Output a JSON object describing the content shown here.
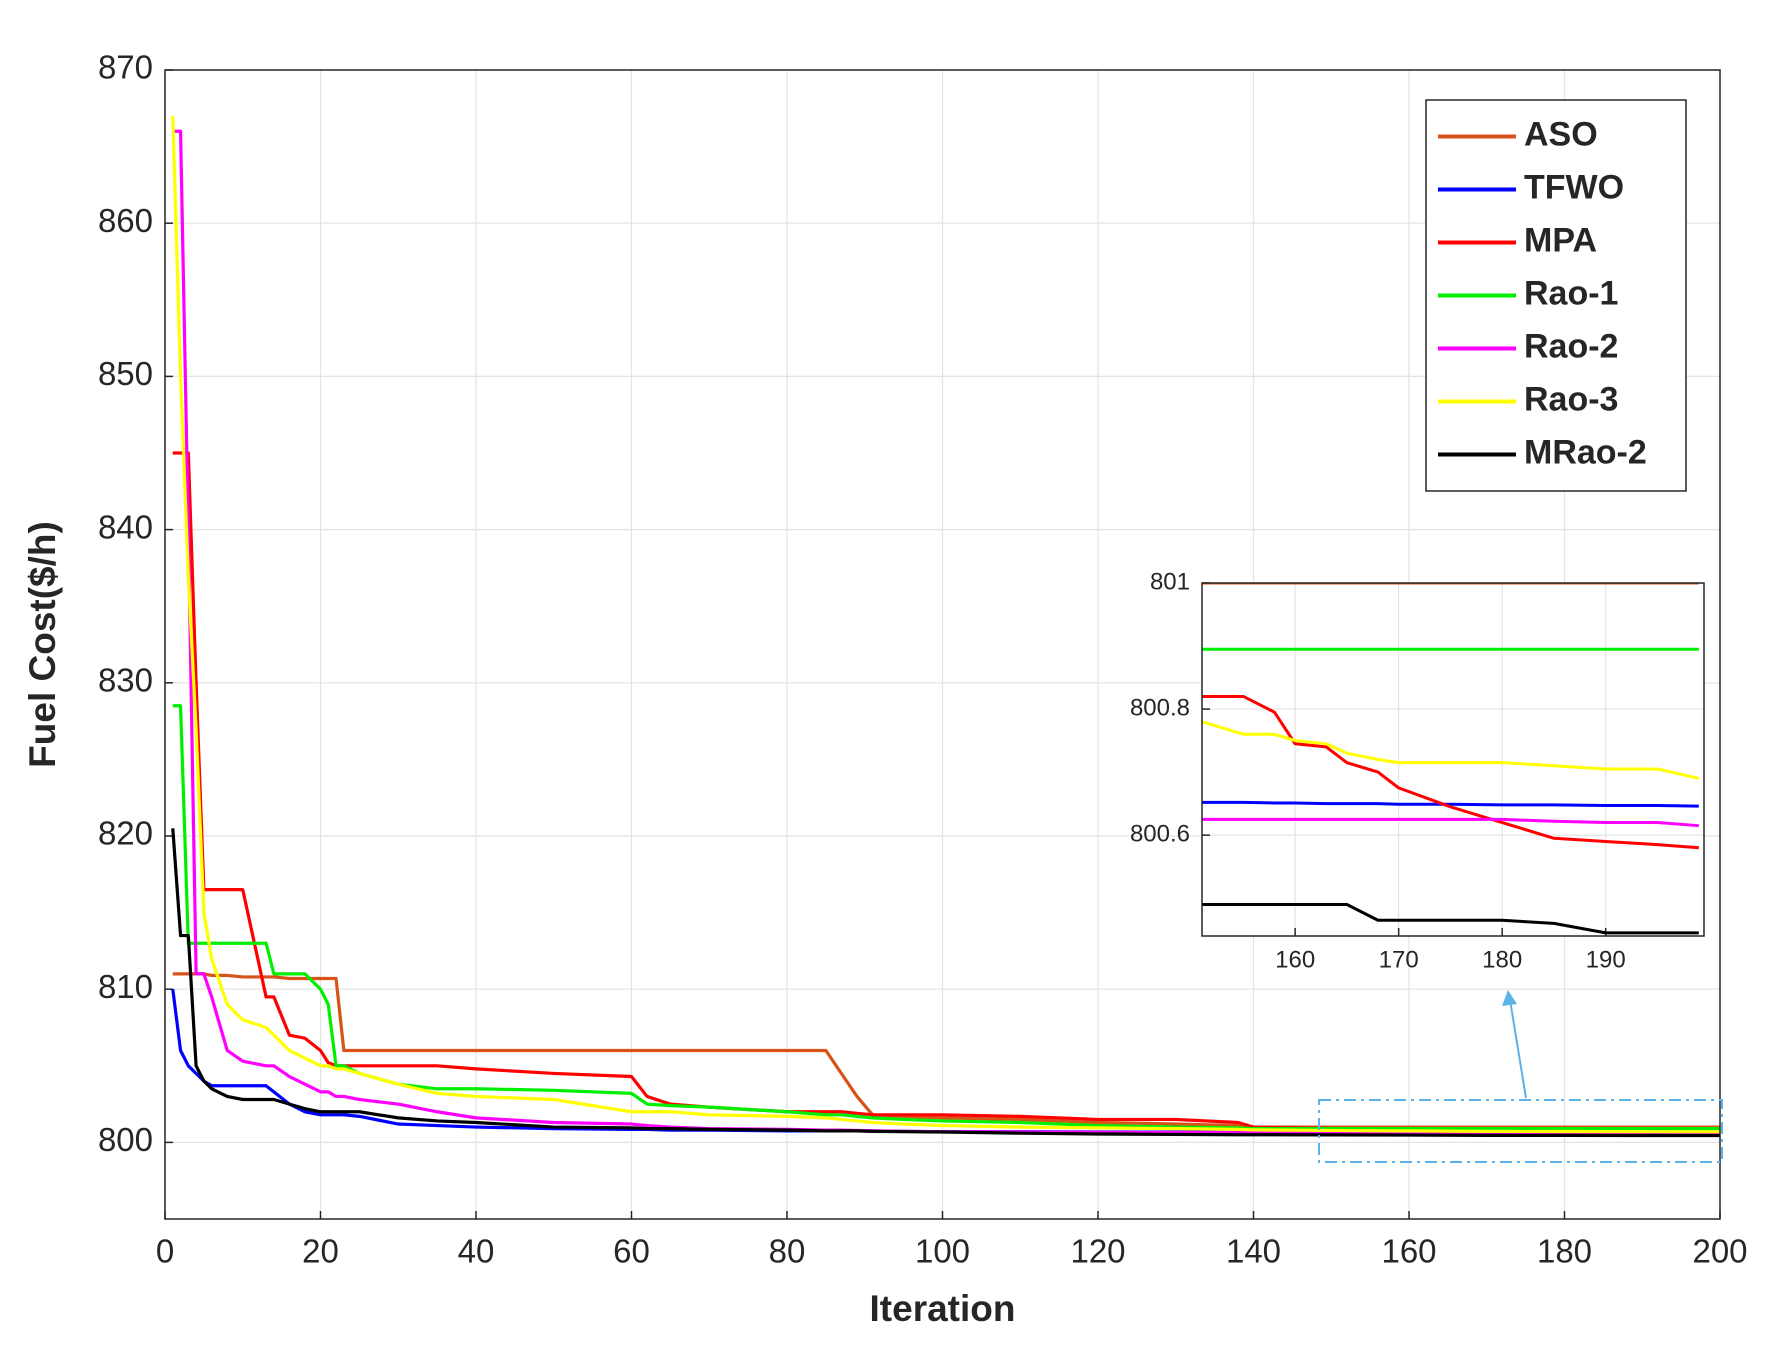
{
  "chart_data": [
    {
      "type": "line",
      "xlabel": "Iteration",
      "ylabel": "Fuel Cost($/h)",
      "xlim": [
        0,
        200
      ],
      "xticks": [
        0,
        20,
        40,
        60,
        80,
        100,
        120,
        140,
        160,
        180,
        200
      ],
      "ylim": [
        795,
        870
      ],
      "yticks": [
        800,
        810,
        820,
        830,
        840,
        850,
        860,
        870
      ],
      "grid": true,
      "legend_position": "upper right",
      "x": [
        1,
        2,
        3,
        4,
        5,
        6,
        8,
        10,
        13,
        14,
        16,
        18,
        20,
        21,
        22,
        23,
        25,
        30,
        35,
        40,
        50,
        60,
        62,
        65,
        70,
        80,
        85,
        87,
        89,
        91,
        95,
        100,
        110,
        120,
        130,
        138,
        140,
        150,
        160,
        170,
        180,
        190,
        200
      ],
      "series": [
        {
          "name": "ASO",
          "color": "#d95319",
          "values": [
            811,
            811,
            811,
            811,
            811,
            810.9,
            810.9,
            810.8,
            810.8,
            810.8,
            810.7,
            810.7,
            810.7,
            810.7,
            810.7,
            806,
            806,
            806,
            806,
            806,
            806,
            806,
            806,
            806,
            806,
            806,
            806,
            804.5,
            803,
            801.8,
            801.7,
            801.6,
            801.5,
            801.3,
            801.2,
            801.1,
            801,
            801,
            801,
            801,
            801,
            801,
            801
          ]
        },
        {
          "name": "TFWO",
          "color": "#0000ff",
          "values": [
            810,
            806,
            805,
            804.5,
            804,
            803.7,
            803.7,
            803.7,
            803.7,
            803.3,
            802.5,
            802,
            801.8,
            801.8,
            801.8,
            801.8,
            801.7,
            801.2,
            801.1,
            801,
            800.9,
            800.85,
            800.85,
            800.8,
            800.8,
            800.75,
            800.75,
            800.75,
            800.75,
            800.75,
            800.72,
            800.7,
            800.7,
            800.68,
            800.67,
            800.66,
            800.66,
            800.65,
            800.65,
            800.65,
            800.65,
            800.65,
            800.65
          ]
        },
        {
          "name": "MPA",
          "color": "#ff0000",
          "values": [
            845,
            845,
            845,
            830,
            816.5,
            816.5,
            816.5,
            816.5,
            809.5,
            809.5,
            807,
            806.8,
            806,
            805.2,
            805,
            805,
            805,
            805,
            805,
            804.8,
            804.5,
            804.3,
            803,
            802.5,
            802.3,
            802,
            802,
            802,
            801.9,
            801.8,
            801.8,
            801.8,
            801.7,
            801.5,
            801.5,
            801.3,
            801,
            800.9,
            800.82,
            800.72,
            800.62,
            800.59,
            800.58
          ]
        },
        {
          "name": "Rao-1",
          "color": "#00ee00",
          "values": [
            828.5,
            828.5,
            813,
            813,
            813,
            813,
            813,
            813,
            813,
            811,
            811,
            811,
            810,
            809,
            805,
            805,
            804.5,
            803.8,
            803.5,
            803.5,
            803.4,
            803.2,
            802.5,
            802.4,
            802.3,
            802,
            801.8,
            801.8,
            801.7,
            801.6,
            801.5,
            801.4,
            801.3,
            801.1,
            801,
            800.95,
            800.9,
            800.9,
            800.9,
            800.9,
            800.9,
            800.9,
            800.9
          ]
        },
        {
          "name": "Rao-2",
          "color": "#ff00ff",
          "values": [
            866,
            866,
            840,
            811,
            811,
            809.5,
            806,
            805.3,
            805,
            805,
            804.3,
            803.8,
            803.3,
            803.3,
            803,
            803,
            802.8,
            802.5,
            802,
            801.6,
            801.3,
            801.2,
            801.1,
            801,
            800.9,
            800.85,
            800.8,
            800.8,
            800.78,
            800.75,
            800.72,
            800.7,
            800.68,
            800.66,
            800.64,
            800.63,
            800.63,
            800.63,
            800.62,
            800.62,
            800.62,
            800.62,
            800.62
          ]
        },
        {
          "name": "Rao-3",
          "color": "#ffff00",
          "values": [
            867,
            850,
            837,
            827,
            815,
            812,
            809,
            808,
            807.5,
            807,
            806,
            805.5,
            805,
            805,
            804.8,
            804.8,
            804.5,
            803.8,
            803.2,
            803,
            802.8,
            802,
            802,
            802,
            801.8,
            801.7,
            801.6,
            801.5,
            801.4,
            801.3,
            801.2,
            801.1,
            801,
            800.95,
            800.9,
            800.85,
            800.82,
            800.78,
            800.75,
            800.72,
            800.71,
            800.7,
            800.69
          ]
        },
        {
          "name": "MRao-2",
          "color": "#000000",
          "values": [
            820.5,
            813.5,
            813.5,
            805,
            804,
            803.5,
            803,
            802.8,
            802.8,
            802.8,
            802.5,
            802.2,
            802,
            802,
            802,
            802,
            802,
            801.6,
            801.4,
            801.3,
            801,
            800.95,
            800.9,
            800.9,
            800.85,
            800.8,
            800.75,
            800.75,
            800.75,
            800.72,
            800.7,
            800.68,
            800.6,
            800.55,
            800.52,
            800.5,
            800.5,
            800.49,
            800.48,
            800.46,
            800.46,
            800.45,
            800.45
          ]
        }
      ]
    },
    {
      "type": "line",
      "xlim": [
        151,
        199.5
      ],
      "xticks": [
        160,
        170,
        180,
        190
      ],
      "ylim": [
        800.44,
        801
      ],
      "yticks": [
        800.6,
        800.8,
        801
      ],
      "grid": true,
      "x": [
        151,
        155,
        158,
        160,
        163,
        165,
        168,
        170,
        175,
        180,
        185,
        190,
        195,
        199
      ],
      "series": [
        {
          "color": "#d95319",
          "values": [
            801,
            801,
            801,
            801,
            801,
            801,
            801,
            801,
            801,
            801,
            801,
            801,
            801,
            801
          ]
        },
        {
          "color": "#0000ff",
          "values": [
            800.652,
            800.652,
            800.651,
            800.651,
            800.65,
            800.65,
            800.65,
            800.649,
            800.649,
            800.648,
            800.648,
            800.647,
            800.647,
            800.646
          ]
        },
        {
          "color": "#ff0000",
          "values": [
            800.82,
            800.82,
            800.795,
            800.745,
            800.74,
            800.715,
            800.7,
            800.675,
            800.645,
            800.62,
            800.595,
            800.59,
            800.585,
            800.58
          ]
        },
        {
          "color": "#00ee00",
          "values": [
            800.895,
            800.895,
            800.895,
            800.895,
            800.895,
            800.895,
            800.895,
            800.895,
            800.895,
            800.895,
            800.895,
            800.895,
            800.895,
            800.895
          ]
        },
        {
          "color": "#ff00ff",
          "values": [
            800.625,
            800.625,
            800.625,
            800.625,
            800.625,
            800.625,
            800.625,
            800.625,
            800.625,
            800.625,
            800.622,
            800.62,
            800.62,
            800.615
          ]
        },
        {
          "color": "#ffff00",
          "values": [
            800.78,
            800.76,
            800.76,
            800.75,
            800.745,
            800.73,
            800.72,
            800.715,
            800.715,
            800.715,
            800.71,
            800.705,
            800.705,
            800.69
          ]
        },
        {
          "color": "#000000",
          "values": [
            800.49,
            800.49,
            800.49,
            800.49,
            800.49,
            800.49,
            800.465,
            800.465,
            800.465,
            800.465,
            800.46,
            800.445,
            800.445,
            800.445
          ]
        }
      ]
    }
  ]
}
